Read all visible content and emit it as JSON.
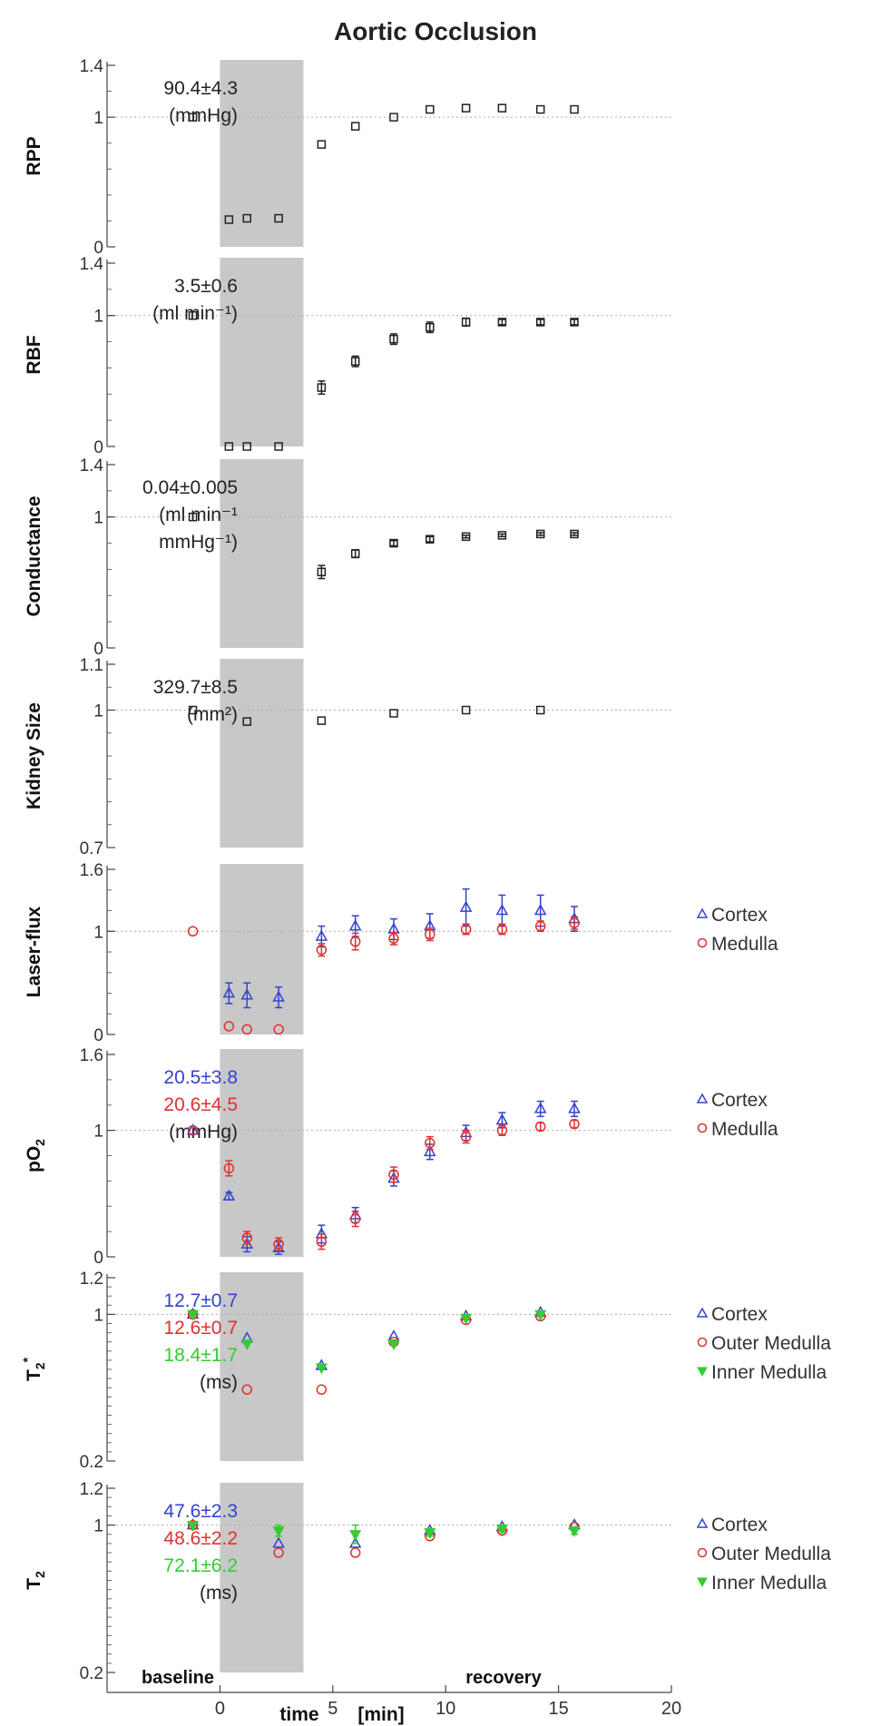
{
  "title": "Aortic Occlusion",
  "colors": {
    "black": "#222222",
    "cortex": "#3344cc",
    "medulla": "#e03030",
    "inner": "#33cc33",
    "occlusion": "#c8c8c8"
  },
  "xaxis": {
    "label": "time",
    "unit": "[min]",
    "ticks": [
      0,
      5,
      10,
      15,
      20
    ],
    "range": [
      -5,
      20
    ],
    "phase_labels": [
      "baseline",
      "recovery"
    ]
  },
  "occlusion_window": [
    0,
    3.7
  ],
  "chart_data": [
    {
      "type": "scatter",
      "ylabel": "RPP",
      "ylim": [
        0,
        1.4
      ],
      "yticks": [
        "0",
        "1",
        "1.4"
      ],
      "baseline_values": [
        "90.4±4.3",
        "(mmHg)"
      ],
      "series": [
        {
          "marker": "square",
          "color": "black",
          "x": [
            -1.2,
            0.4,
            1.2,
            2.6,
            4.5,
            6.0,
            7.7,
            9.3,
            10.9,
            12.5,
            14.2,
            15.7
          ],
          "y": [
            1.0,
            0.21,
            0.22,
            0.22,
            0.79,
            0.93,
            1.0,
            1.06,
            1.07,
            1.07,
            1.06,
            1.06
          ]
        }
      ]
    },
    {
      "type": "scatter",
      "ylabel": "RBF",
      "ylim": [
        0,
        1.4
      ],
      "yticks": [
        "0",
        "1",
        "1.4"
      ],
      "baseline_values": [
        "3.5±0.6",
        "(ml min⁻¹)"
      ],
      "series": [
        {
          "marker": "square",
          "color": "black",
          "x": [
            -1.2,
            0.4,
            1.2,
            2.6,
            4.5,
            6.0,
            7.7,
            9.3,
            10.9,
            12.5,
            14.2,
            15.7
          ],
          "y": [
            1.0,
            0.0,
            0.0,
            0.0,
            0.45,
            0.65,
            0.82,
            0.91,
            0.95,
            0.95,
            0.95,
            0.95
          ],
          "err": [
            0,
            0,
            0,
            0,
            0.05,
            0.04,
            0.04,
            0.04,
            0.03,
            0.02,
            0.02,
            0.02
          ]
        }
      ]
    },
    {
      "type": "scatter",
      "ylabel": "Conductance",
      "ylim": [
        0,
        1.4
      ],
      "yticks": [
        "0",
        "1",
        "1.4"
      ],
      "baseline_values": [
        "0.04±0.005",
        "(ml min⁻¹",
        "mmHg⁻¹)"
      ],
      "series": [
        {
          "marker": "square",
          "color": "black",
          "x": [
            -1.2,
            4.5,
            6.0,
            7.7,
            9.3,
            10.9,
            12.5,
            14.2,
            15.7
          ],
          "y": [
            1.0,
            0.58,
            0.72,
            0.8,
            0.83,
            0.85,
            0.86,
            0.87,
            0.87
          ],
          "err": [
            0,
            0.05,
            0.03,
            0.02,
            0.02,
            0.01,
            0.01,
            0.01,
            0.01
          ]
        }
      ]
    },
    {
      "type": "scatter",
      "ylabel": "Kidney Size",
      "ylim": [
        0.7,
        1.1
      ],
      "yticks": [
        "0.7",
        "1",
        "1.1"
      ],
      "baseline_values": [
        "329.7±8.5",
        "(mm²)"
      ],
      "series": [
        {
          "marker": "square",
          "color": "black",
          "x": [
            -1.2,
            1.2,
            4.5,
            7.7,
            10.9,
            14.2
          ],
          "y": [
            1.0,
            0.975,
            0.977,
            0.993,
            1.0,
            1.0
          ]
        }
      ]
    },
    {
      "type": "scatter",
      "ylabel": "Laser-flux",
      "ylim": [
        0,
        1.6
      ],
      "yticks": [
        "0",
        "1",
        "1.6"
      ],
      "baseline_values": [],
      "legend": [
        "Cortex",
        "Medulla"
      ],
      "series": [
        {
          "name": "Cortex",
          "marker": "triangle",
          "color": "cortex",
          "x": [
            0.4,
            1.2,
            2.6,
            4.5,
            6.0,
            7.7,
            9.3,
            10.9,
            12.5,
            14.2,
            15.7
          ],
          "y": [
            0.4,
            0.38,
            0.36,
            0.95,
            1.05,
            1.02,
            1.05,
            1.23,
            1.2,
            1.2,
            1.12
          ],
          "err": [
            0.1,
            0.12,
            0.1,
            0.1,
            0.1,
            0.1,
            0.12,
            0.18,
            0.15,
            0.15,
            0.12
          ]
        },
        {
          "name": "Medulla",
          "marker": "circle",
          "color": "medulla",
          "x": [
            -1.2,
            0.4,
            1.2,
            2.6,
            4.5,
            6.0,
            7.7,
            9.3,
            10.9,
            12.5,
            14.2,
            15.7
          ],
          "y": [
            1.0,
            0.08,
            0.05,
            0.05,
            0.82,
            0.9,
            0.93,
            0.97,
            1.02,
            1.02,
            1.05,
            1.08
          ],
          "err": [
            0,
            0,
            0,
            0,
            0.06,
            0.08,
            0.06,
            0.06,
            0.05,
            0.05,
            0.05,
            0.06
          ]
        }
      ]
    },
    {
      "type": "scatter",
      "ylabel": "pO",
      "ylabel_sub": "2",
      "ylim": [
        0,
        1.6
      ],
      "yticks": [
        "0",
        "1",
        "1.6"
      ],
      "baseline_values": [
        "20.5±3.8",
        "20.6±4.5",
        "(mmHg)"
      ],
      "baseline_colors": [
        "cortex",
        "medulla",
        "black"
      ],
      "legend": [
        "Cortex",
        "Medulla"
      ],
      "series": [
        {
          "name": "Cortex",
          "marker": "triangle",
          "color": "cortex",
          "x": [
            -1.2,
            0.4,
            1.2,
            2.6,
            4.5,
            6.0,
            7.7,
            9.3,
            10.9,
            12.5,
            14.2,
            15.7
          ],
          "y": [
            1.0,
            0.48,
            0.1,
            0.07,
            0.18,
            0.33,
            0.62,
            0.83,
            0.98,
            1.08,
            1.17,
            1.17
          ],
          "err": [
            0,
            0.03,
            0.06,
            0.05,
            0.07,
            0.06,
            0.06,
            0.06,
            0.06,
            0.06,
            0.06,
            0.06
          ]
        },
        {
          "name": "Medulla",
          "marker": "circle",
          "color": "medulla",
          "x": [
            -1.2,
            0.4,
            1.2,
            2.6,
            4.5,
            6.0,
            7.7,
            9.3,
            10.9,
            12.5,
            14.2,
            15.7
          ],
          "y": [
            1.0,
            0.7,
            0.15,
            0.1,
            0.12,
            0.3,
            0.65,
            0.9,
            0.95,
            1.0,
            1.03,
            1.05
          ],
          "err": [
            0,
            0.06,
            0.05,
            0.05,
            0.06,
            0.06,
            0.06,
            0.05,
            0.05,
            0.04,
            0.03,
            0.03
          ]
        }
      ]
    },
    {
      "type": "scatter",
      "ylabel": "T",
      "ylabel_sub": "2",
      "ylabel_sup": "*",
      "ylim": [
        0.2,
        1.2
      ],
      "yticks": [
        "0.2",
        "1",
        "1.2"
      ],
      "baseline_values": [
        "12.7±0.7",
        "12.6±0.7",
        "18.4±1.7",
        "(ms)"
      ],
      "baseline_colors": [
        "cortex",
        "medulla",
        "inner",
        "black"
      ],
      "legend": [
        "Cortex",
        "Outer Medulla",
        "Inner Medulla"
      ],
      "series": [
        {
          "name": "Cortex",
          "marker": "triangle",
          "color": "cortex",
          "x": [
            -1.2,
            1.2,
            4.5,
            7.7,
            10.9,
            14.2
          ],
          "y": [
            1.0,
            0.87,
            0.72,
            0.88,
            0.99,
            1.01
          ]
        },
        {
          "name": "Outer Medulla",
          "marker": "circle",
          "color": "medulla",
          "x": [
            -1.2,
            1.2,
            4.5,
            7.7,
            10.9,
            14.2
          ],
          "y": [
            1.0,
            0.59,
            0.59,
            0.85,
            0.97,
            0.99
          ]
        },
        {
          "name": "Inner Medulla",
          "marker": "triangle-down",
          "color": "inner",
          "x": [
            -1.2,
            1.2,
            4.5,
            7.7,
            10.9,
            14.2
          ],
          "y": [
            1.0,
            0.84,
            0.71,
            0.84,
            0.98,
            1.0
          ]
        }
      ]
    },
    {
      "type": "scatter",
      "ylabel": "T",
      "ylabel_sub": "2",
      "ylim": [
        0.2,
        1.2
      ],
      "yticks": [
        "0.2",
        "1",
        "1.2"
      ],
      "baseline_values": [
        "47.6±2.3",
        "48.6±2.2",
        "72.1±6.2",
        "(ms)"
      ],
      "baseline_colors": [
        "cortex",
        "medulla",
        "inner",
        "black"
      ],
      "legend": [
        "Cortex",
        "Outer Medulla",
        "Inner Medulla"
      ],
      "series": [
        {
          "name": "Cortex",
          "marker": "triangle",
          "color": "cortex",
          "x": [
            -1.2,
            2.6,
            6.0,
            9.3,
            12.5,
            15.7
          ],
          "y": [
            1.0,
            0.9,
            0.9,
            0.97,
            0.99,
            1.0
          ]
        },
        {
          "name": "Outer Medulla",
          "marker": "circle",
          "color": "medulla",
          "x": [
            -1.2,
            2.6,
            6.0,
            9.3,
            12.5,
            15.7
          ],
          "y": [
            1.0,
            0.85,
            0.85,
            0.94,
            0.97,
            0.99
          ]
        },
        {
          "name": "Inner Medulla",
          "marker": "triangle-down",
          "color": "inner",
          "x": [
            -1.2,
            2.6,
            6.0,
            9.3,
            12.5,
            15.7
          ],
          "y": [
            1.0,
            0.97,
            0.95,
            0.96,
            0.98,
            0.97
          ],
          "err": [
            0,
            0.03,
            0.05,
            0.02,
            0.02,
            0.02
          ]
        }
      ]
    }
  ]
}
